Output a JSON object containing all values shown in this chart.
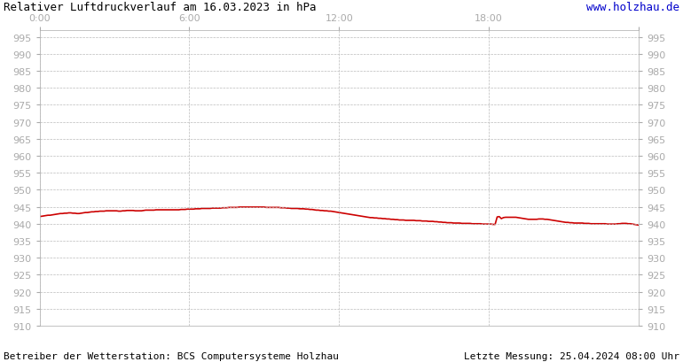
{
  "title": "Relativer Luftdruckverlauf am 16.03.2023 in hPa",
  "title_color": "#000000",
  "url_text": "www.holzhau.de",
  "url_color": "#0000cc",
  "footer_left": "Betreiber der Wetterstation: BCS Computersysteme Holzhau",
  "footer_right": "Letzte Messung: 25.04.2024 08:00 Uhr",
  "footer_color": "#000000",
  "background_color": "#ffffff",
  "plot_bg_color": "#ffffff",
  "grid_color": "#bbbbbb",
  "tick_label_color": "#aaaaaa",
  "line_color": "#cc0000",
  "line_width": 1.2,
  "xlim": [
    0,
    288
  ],
  "ylim": [
    910,
    997
  ],
  "yticks": [
    910,
    915,
    920,
    925,
    930,
    935,
    940,
    945,
    950,
    955,
    960,
    965,
    970,
    975,
    980,
    985,
    990,
    995
  ],
  "xtick_positions": [
    0,
    72,
    144,
    216,
    288
  ],
  "xtick_labels": [
    "0:00",
    "6:00",
    "12:00",
    "18:00",
    ""
  ],
  "pressure_values": [
    942.1,
    942.2,
    942.3,
    942.4,
    942.5,
    942.5,
    942.6,
    942.7,
    942.8,
    942.9,
    943.0,
    943.0,
    943.1,
    943.1,
    943.2,
    943.2,
    943.1,
    943.1,
    943.0,
    943.0,
    943.1,
    943.2,
    943.3,
    943.3,
    943.4,
    943.5,
    943.5,
    943.6,
    943.6,
    943.7,
    943.7,
    943.7,
    943.8,
    943.8,
    943.8,
    943.8,
    943.8,
    943.8,
    943.7,
    943.7,
    943.8,
    943.8,
    943.9,
    943.9,
    943.9,
    943.9,
    943.8,
    943.8,
    943.8,
    943.8,
    943.9,
    944.0,
    944.0,
    944.0,
    944.0,
    944.0,
    944.1,
    944.1,
    944.1,
    944.1,
    944.1,
    944.1,
    944.1,
    944.1,
    944.1,
    944.1,
    944.1,
    944.1,
    944.2,
    944.2,
    944.2,
    944.3,
    944.3,
    944.3,
    944.3,
    944.4,
    944.4,
    944.4,
    944.5,
    944.5,
    944.5,
    944.5,
    944.5,
    944.6,
    944.6,
    944.6,
    944.6,
    944.6,
    944.7,
    944.7,
    944.7,
    944.8,
    944.8,
    944.8,
    944.8,
    944.8,
    944.9,
    944.9,
    944.9,
    944.9,
    944.9,
    944.9,
    944.9,
    944.9,
    944.9,
    944.9,
    944.9,
    944.9,
    944.9,
    944.8,
    944.8,
    944.8,
    944.8,
    944.8,
    944.8,
    944.8,
    944.7,
    944.7,
    944.7,
    944.6,
    944.6,
    944.5,
    944.5,
    944.5,
    944.5,
    944.4,
    944.4,
    944.4,
    944.3,
    944.3,
    944.2,
    944.2,
    944.1,
    944.0,
    944.0,
    943.9,
    943.9,
    943.8,
    943.8,
    943.7,
    943.7,
    943.6,
    943.5,
    943.4,
    943.3,
    943.2,
    943.1,
    943.0,
    942.9,
    942.8,
    942.7,
    942.6,
    942.5,
    942.4,
    942.3,
    942.2,
    942.1,
    942.0,
    941.9,
    941.8,
    941.8,
    941.7,
    941.7,
    941.6,
    941.6,
    941.5,
    941.5,
    941.4,
    941.4,
    941.3,
    941.3,
    941.2,
    941.2,
    941.1,
    941.1,
    941.1,
    941.0,
    941.0,
    941.0,
    941.0,
    941.0,
    940.9,
    940.9,
    940.9,
    940.8,
    940.8,
    940.8,
    940.7,
    940.7,
    940.7,
    940.6,
    940.6,
    940.5,
    940.5,
    940.4,
    940.4,
    940.3,
    940.3,
    940.3,
    940.2,
    940.2,
    940.2,
    940.2,
    940.1,
    940.1,
    940.1,
    940.1,
    940.1,
    940.0,
    940.0,
    940.0,
    940.0,
    940.0,
    939.9,
    939.9,
    939.9,
    939.9,
    939.9,
    939.8,
    939.8,
    942.0,
    942.1,
    941.5,
    941.8,
    941.9,
    941.9,
    941.9,
    941.9,
    941.9,
    941.9,
    941.8,
    941.7,
    941.6,
    941.5,
    941.4,
    941.3,
    941.3,
    941.3,
    941.3,
    941.3,
    941.4,
    941.4,
    941.4,
    941.3,
    941.3,
    941.2,
    941.1,
    941.0,
    940.9,
    940.8,
    940.7,
    940.6,
    940.5,
    940.4,
    940.4,
    940.3,
    940.3,
    940.2,
    940.2,
    940.2,
    940.2,
    940.2,
    940.1,
    940.1,
    940.1,
    940.0,
    940.0,
    940.0,
    940.0,
    940.0,
    940.0,
    940.0,
    940.0,
    939.9,
    939.9,
    939.9,
    939.9,
    939.9,
    940.0,
    940.0,
    940.1,
    940.1,
    940.1,
    940.0,
    940.0,
    939.9,
    939.8,
    939.7,
    939.6,
    939.5
  ]
}
